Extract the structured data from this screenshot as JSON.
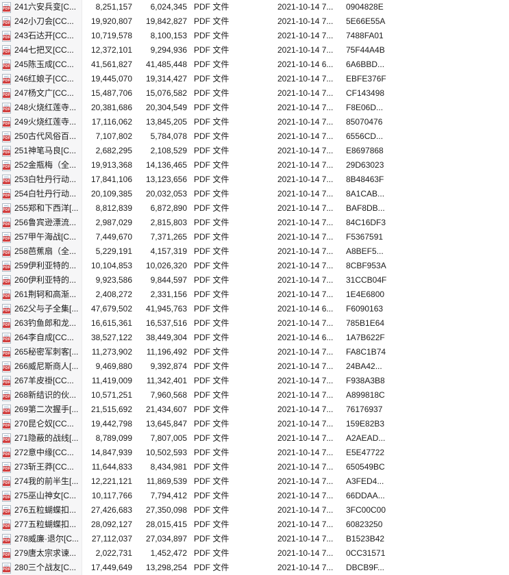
{
  "colors": {
    "pdf_icon_red": "#d13e3e",
    "name_column_tint": "#f6f6f7",
    "name_column_divider": "#ebebeb",
    "text": "#1b1b1b"
  },
  "icon": {
    "label": "PDF"
  },
  "table": {
    "rows": [
      {
        "name": "241六安兵变[C...",
        "size": "8,251,157",
        "packed": "6,024,345",
        "type": "PDF 文件",
        "modified": "2021-10-14 7...",
        "crc": "0904828E"
      },
      {
        "name": "242小刀会[CC...",
        "size": "19,920,807",
        "packed": "19,842,827",
        "type": "PDF 文件",
        "modified": "2021-10-14 7...",
        "crc": "5E66E55A"
      },
      {
        "name": "243石达开[CC...",
        "size": "10,719,578",
        "packed": "8,100,153",
        "type": "PDF 文件",
        "modified": "2021-10-14 7...",
        "crc": "7488FA01"
      },
      {
        "name": "244七把叉[CC...",
        "size": "12,372,101",
        "packed": "9,294,936",
        "type": "PDF 文件",
        "modified": "2021-10-14 7...",
        "crc": "75F44A4B"
      },
      {
        "name": "245陈玉成[CC...",
        "size": "41,561,827",
        "packed": "41,485,448",
        "type": "PDF 文件",
        "modified": "2021-10-14 6...",
        "crc": "6A6BBD..."
      },
      {
        "name": "246红娘子[CC...",
        "size": "19,445,070",
        "packed": "19,314,427",
        "type": "PDF 文件",
        "modified": "2021-10-14 7...",
        "crc": "EBFE376F"
      },
      {
        "name": "247杨文广[CC...",
        "size": "15,487,706",
        "packed": "15,076,582",
        "type": "PDF 文件",
        "modified": "2021-10-14 7...",
        "crc": "CF143498"
      },
      {
        "name": "248火烧红莲寺...",
        "size": "20,381,686",
        "packed": "20,304,549",
        "type": "PDF 文件",
        "modified": "2021-10-14 7...",
        "crc": "F8E06D..."
      },
      {
        "name": "249火烧红莲寺...",
        "size": "17,116,062",
        "packed": "13,845,205",
        "type": "PDF 文件",
        "modified": "2021-10-14 7...",
        "crc": "85070476"
      },
      {
        "name": "250古代风俗百...",
        "size": "7,107,802",
        "packed": "5,784,078",
        "type": "PDF 文件",
        "modified": "2021-10-14 7...",
        "crc": "6556CD..."
      },
      {
        "name": "251神笔马良[C...",
        "size": "2,682,295",
        "packed": "2,108,529",
        "type": "PDF 文件",
        "modified": "2021-10-14 7...",
        "crc": "E8697868"
      },
      {
        "name": "252金瓶梅（全...",
        "size": "19,913,368",
        "packed": "14,136,465",
        "type": "PDF 文件",
        "modified": "2021-10-14 7...",
        "crc": "29D63023"
      },
      {
        "name": "253白牡丹行动...",
        "size": "17,841,106",
        "packed": "13,123,656",
        "type": "PDF 文件",
        "modified": "2021-10-14 7...",
        "crc": "8B48463F"
      },
      {
        "name": "254白牡丹行动...",
        "size": "20,109,385",
        "packed": "20,032,053",
        "type": "PDF 文件",
        "modified": "2021-10-14 7...",
        "crc": "8A1CAB..."
      },
      {
        "name": "255郑和下西洋[...",
        "size": "8,812,839",
        "packed": "6,872,890",
        "type": "PDF 文件",
        "modified": "2021-10-14 7...",
        "crc": "BAF8DB..."
      },
      {
        "name": "256鲁宾逊漂流...",
        "size": "2,987,029",
        "packed": "2,815,803",
        "type": "PDF 文件",
        "modified": "2021-10-14 7...",
        "crc": "84C16DF3"
      },
      {
        "name": "257甲午海战[C...",
        "size": "7,449,670",
        "packed": "7,371,265",
        "type": "PDF 文件",
        "modified": "2021-10-14 7...",
        "crc": "F5367591"
      },
      {
        "name": "258芭蕉扇（全...",
        "size": "5,229,191",
        "packed": "4,157,319",
        "type": "PDF 文件",
        "modified": "2021-10-14 7...",
        "crc": "A8BEF5..."
      },
      {
        "name": "259伊利亚特的...",
        "size": "10,104,853",
        "packed": "10,026,320",
        "type": "PDF 文件",
        "modified": "2021-10-14 7...",
        "crc": "8CBF953A"
      },
      {
        "name": "260伊利亚特的...",
        "size": "9,923,586",
        "packed": "9,844,597",
        "type": "PDF 文件",
        "modified": "2021-10-14 7...",
        "crc": "31CCB04F"
      },
      {
        "name": "261荆轲和高渐...",
        "size": "2,408,272",
        "packed": "2,331,156",
        "type": "PDF 文件",
        "modified": "2021-10-14 7...",
        "crc": "1E4E6800"
      },
      {
        "name": "262父与子全集[...",
        "size": "47,679,502",
        "packed": "41,945,763",
        "type": "PDF 文件",
        "modified": "2021-10-14 6...",
        "crc": "F6090163"
      },
      {
        "name": "263钓鱼郎和龙...",
        "size": "16,615,361",
        "packed": "16,537,516",
        "type": "PDF 文件",
        "modified": "2021-10-14 7...",
        "crc": "785B1E64"
      },
      {
        "name": "264李自成[CC...",
        "size": "38,527,122",
        "packed": "38,449,304",
        "type": "PDF 文件",
        "modified": "2021-10-14 6...",
        "crc": "1A7B622F"
      },
      {
        "name": "265秘密军刺客[...",
        "size": "11,273,902",
        "packed": "11,196,492",
        "type": "PDF 文件",
        "modified": "2021-10-14 7...",
        "crc": "FA8C1B74"
      },
      {
        "name": "266威尼斯商人[...",
        "size": "9,469,880",
        "packed": "9,392,874",
        "type": "PDF 文件",
        "modified": "2021-10-14 7...",
        "crc": "24BA42..."
      },
      {
        "name": "267羊皮褂[CC...",
        "size": "11,419,009",
        "packed": "11,342,401",
        "type": "PDF 文件",
        "modified": "2021-10-14 7...",
        "crc": "F938A3B8"
      },
      {
        "name": "268新结识的伙...",
        "size": "10,571,251",
        "packed": "7,960,568",
        "type": "PDF 文件",
        "modified": "2021-10-14 7...",
        "crc": "A899818C"
      },
      {
        "name": "269第二次握手[...",
        "size": "21,515,692",
        "packed": "21,434,607",
        "type": "PDF 文件",
        "modified": "2021-10-14 7...",
        "crc": "76176937"
      },
      {
        "name": "270昆仑奴[CC...",
        "size": "19,442,798",
        "packed": "13,645,847",
        "type": "PDF 文件",
        "modified": "2021-10-14 7...",
        "crc": "159E82B3"
      },
      {
        "name": "271隐蔽的战线[...",
        "size": "8,789,099",
        "packed": "7,807,005",
        "type": "PDF 文件",
        "modified": "2021-10-14 7...",
        "crc": "A2AEAD..."
      },
      {
        "name": "272意中缘[CC...",
        "size": "14,847,939",
        "packed": "10,502,593",
        "type": "PDF 文件",
        "modified": "2021-10-14 7...",
        "crc": "E5E47722"
      },
      {
        "name": "273斩王莽[CC...",
        "size": "11,644,833",
        "packed": "8,434,981",
        "type": "PDF 文件",
        "modified": "2021-10-14 7...",
        "crc": "650549BC"
      },
      {
        "name": "274我的前半生[...",
        "size": "12,221,121",
        "packed": "11,869,539",
        "type": "PDF 文件",
        "modified": "2021-10-14 7...",
        "crc": "A3FED4..."
      },
      {
        "name": "275巫山神女[C...",
        "size": "10,117,766",
        "packed": "7,794,412",
        "type": "PDF 文件",
        "modified": "2021-10-14 7...",
        "crc": "66DDAA..."
      },
      {
        "name": "276五粒蝴蝶扣...",
        "size": "27,426,683",
        "packed": "27,350,098",
        "type": "PDF 文件",
        "modified": "2021-10-14 7...",
        "crc": "3FC00C00"
      },
      {
        "name": "277五粒蝴蝶扣...",
        "size": "28,092,127",
        "packed": "28,015,415",
        "type": "PDF 文件",
        "modified": "2021-10-14 7...",
        "crc": "60823250"
      },
      {
        "name": "278威廉·退尔[C...",
        "size": "27,112,037",
        "packed": "27,034,897",
        "type": "PDF 文件",
        "modified": "2021-10-14 7...",
        "crc": "B1523B42"
      },
      {
        "name": "279唐太宗求谏...",
        "size": "2,022,731",
        "packed": "1,452,472",
        "type": "PDF 文件",
        "modified": "2021-10-14 7...",
        "crc": "0CC31571"
      },
      {
        "name": "280三个战友[C...",
        "size": "17,449,649",
        "packed": "13,298,254",
        "type": "PDF 文件",
        "modified": "2021-10-14 7...",
        "crc": "DBCB9F..."
      }
    ]
  }
}
